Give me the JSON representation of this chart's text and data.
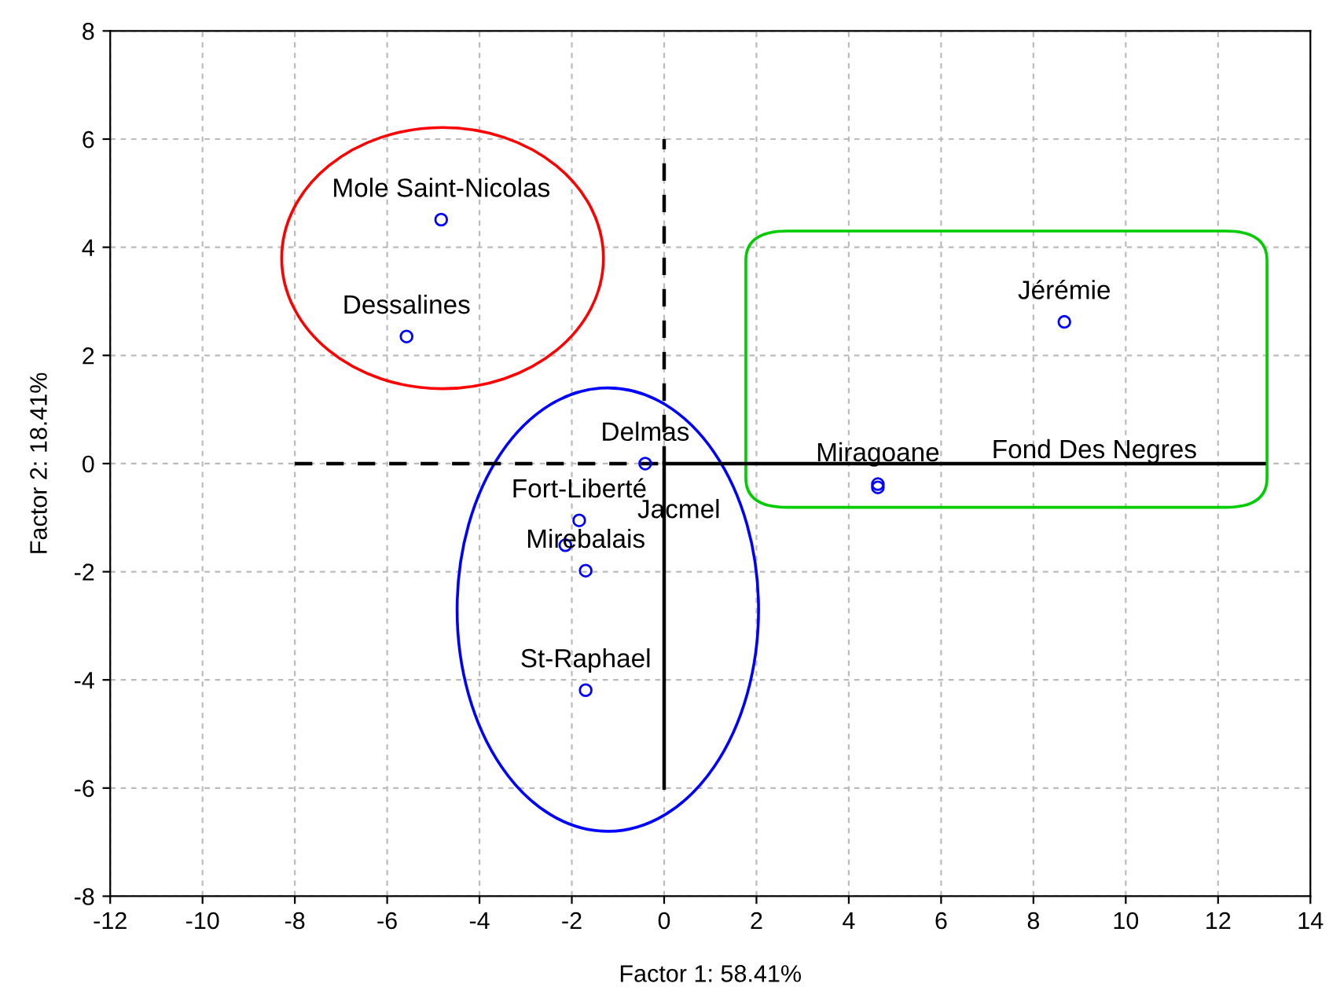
{
  "chart_data": {
    "type": "scatter",
    "xlabel": "Factor 1: 58.41%",
    "ylabel": "Factor 2: 18.41%",
    "xlim": [
      -12,
      14
    ],
    "ylim": [
      -8,
      8
    ],
    "xticks": [
      -12,
      -10,
      -8,
      -6,
      -4,
      -2,
      0,
      2,
      4,
      6,
      8,
      10,
      12,
      14
    ],
    "yticks": [
      -8,
      -6,
      -4,
      -2,
      0,
      2,
      4,
      6,
      8
    ],
    "grid": true,
    "series": [
      {
        "marker": "circle",
        "color": "#0000ff",
        "x": [
          -4.83,
          -5.58,
          8.67,
          4.63,
          4.63,
          -0.41,
          -1.84,
          -2.14,
          -1.7,
          -1.7
        ],
        "values": [
          4.51,
          2.35,
          2.62,
          -0.38,
          -0.44,
          0.0,
          -1.05,
          -1.51,
          -1.98,
          -4.19
        ]
      },
      {
        "type": "line",
        "color": "#000000",
        "line_style": "dashed",
        "x": [
          -8,
          0
        ],
        "values": [
          0,
          0
        ]
      },
      {
        "type": "line",
        "color": "#000000",
        "line_style": "solid",
        "x": [
          0,
          13
        ],
        "values": [
          0,
          0
        ]
      },
      {
        "type": "line",
        "color": "#000000",
        "line_style": "dashed",
        "x": [
          0,
          0
        ],
        "values": [
          0,
          6
        ]
      },
      {
        "type": "line",
        "color": "#000000",
        "line_style": "solid",
        "x": [
          0,
          0
        ],
        "values": [
          0,
          -6
        ]
      }
    ],
    "annotations": [
      {
        "text": "Mole Saint-Nicolas",
        "x": -4.83,
        "y": 4.51
      },
      {
        "text": "Dessalines",
        "x": -5.58,
        "y": 2.35
      },
      {
        "text": "Jérémie",
        "x": 8.67,
        "y": 2.62
      },
      {
        "text": "Miragoane",
        "x": 4.63,
        "y": -0.38
      },
      "Fond Des Negres",
      {
        "text": "Delmas",
        "x": -0.41,
        "y": 0.0
      },
      {
        "text": "Fort-Liberté",
        "x": -1.84,
        "y": -1.05
      },
      {
        "text": "Jacmel",
        "x": -2.14,
        "y": -1.51
      },
      {
        "text": "Mirebalais",
        "x": -1.7,
        "y": -1.98
      },
      {
        "text": "St-Raphael",
        "x": -1.7,
        "y": -4.19
      }
    ]
  }
}
